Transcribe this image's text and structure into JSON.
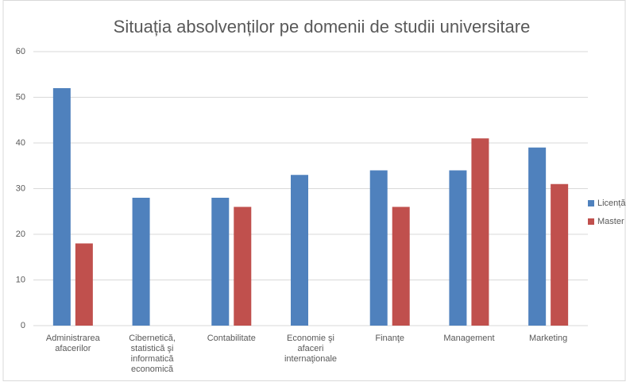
{
  "chart_data": {
    "type": "bar",
    "title": "Situația absolvenților pe domenii de studii universitare",
    "categories": [
      "Administrarea afacerilor",
      "Cibernetică, statistică şi informatică economică",
      "Contabilitate",
      "Economie şi afaceri internaţionale",
      "Finanţe",
      "Management",
      "Marketing"
    ],
    "series": [
      {
        "name": "Licență",
        "color": "#4f81bd",
        "values": [
          52,
          28,
          28,
          33,
          34,
          34,
          39
        ]
      },
      {
        "name": "Master",
        "color": "#c0504d",
        "values": [
          18,
          null,
          26,
          null,
          26,
          41,
          31
        ]
      }
    ],
    "ylim": [
      0,
      60
    ],
    "yticks": [
      0,
      10,
      20,
      30,
      40,
      50,
      60
    ],
    "grid": true,
    "legend": "right"
  }
}
